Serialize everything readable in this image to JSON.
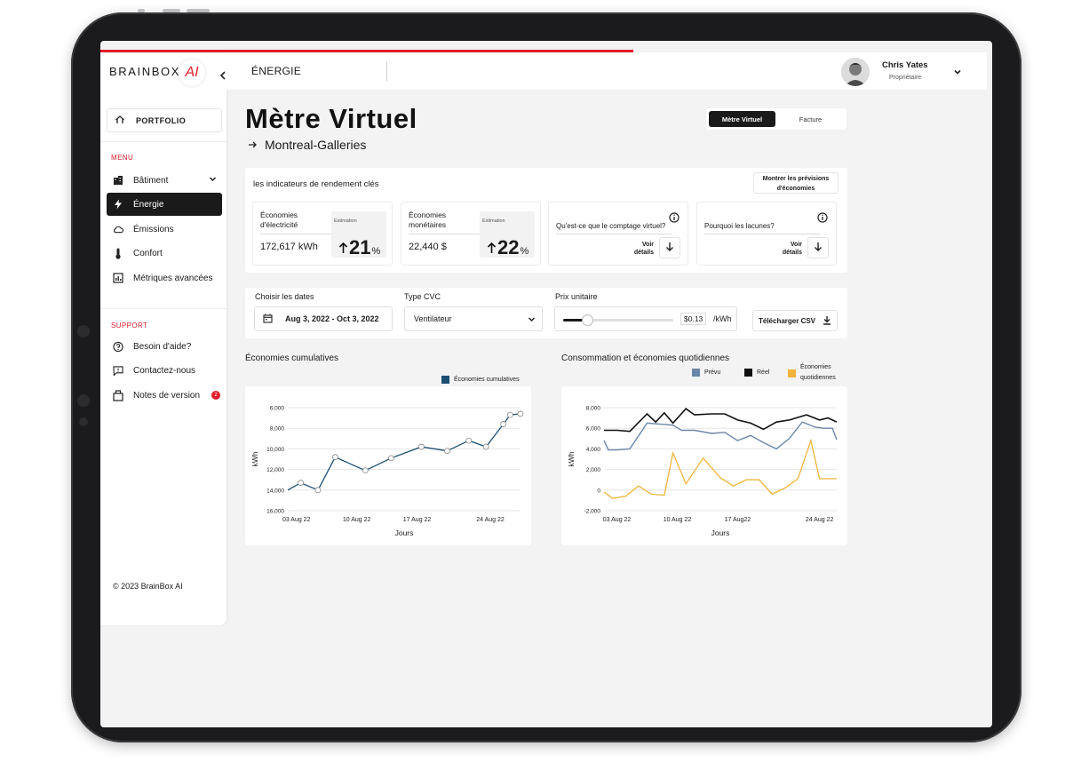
{
  "colors": {
    "brand_red": "#e21d2b",
    "dark": "#1a1a1a",
    "chart_blue": "#1b4f72",
    "prevu": "#6b87a8",
    "reel": "#111111",
    "economies": "#f0b43a"
  },
  "sidebar": {
    "logo_text": "BRAINBOX",
    "logo_ai": "AI",
    "collapse_icon": "chevron-left-icon",
    "portfolio_label": "PORTFOLIO",
    "menu_label": "MENU",
    "menu_items": [
      {
        "label": "Bâtiment",
        "icon": "building-icon",
        "active": false
      },
      {
        "label": "Énergie",
        "icon": "lightning-icon",
        "active": true
      },
      {
        "label": "Émissions",
        "icon": "cloud-icon",
        "active": false
      },
      {
        "label": "Confort",
        "icon": "thermometer-icon",
        "active": false
      },
      {
        "label": "Métriques avancées",
        "icon": "chart-box-icon",
        "active": false
      }
    ],
    "support_label": "SUPPORT",
    "support_items": [
      {
        "label": "Besoin d'aide?",
        "icon": "help-icon"
      },
      {
        "label": "Contactez-nous",
        "icon": "message-icon"
      },
      {
        "label": "Notes de version",
        "icon": "release-notes-icon",
        "badge": "2"
      }
    ],
    "copyright": "© 2023 BrainBox AI"
  },
  "topbar": {
    "title": "ÉNERGIE",
    "user_name": "Chris Yates",
    "user_role": "Propriétaire"
  },
  "header": {
    "title": "Mètre Virtuel",
    "subtitle": "Montreal-Galleries",
    "toggle": [
      "Mètre Virtuel",
      "Facture"
    ]
  },
  "kpis": {
    "title": "les indicateurs de rendement clés",
    "show_button": "Montrer les prévisions d'économies",
    "cards": [
      {
        "label": "Économies d'électricité",
        "value": "172,617 kWh",
        "est_label": "Estimation",
        "est_value": "21",
        "est_unit": "%"
      },
      {
        "label": "Économies monétaires",
        "value": "22,440 $",
        "est_label": "Estimation",
        "est_value": "22",
        "est_unit": "%"
      }
    ],
    "questions": [
      {
        "label": "Qu'est-ce que le comptage virtuel?",
        "link": "Voir détails"
      },
      {
        "label": "Pourquoi les lacunes?",
        "link": "Voir détails"
      }
    ]
  },
  "filters": {
    "dates_label": "Choisir les dates",
    "dates_value": "Aug 3, 2022 - Oct 3, 2022",
    "cvc_label": "Type CVC",
    "cvc_value": "Ventilateur",
    "price_label": "Prix unitaire",
    "price_value": "$0.13",
    "price_unit": "/kWh",
    "price_slider_fraction": 0.22,
    "csv_button": "Télécharger CSV"
  },
  "chart_data": [
    {
      "type": "line",
      "title": "Économies cumulatives",
      "xlabel": "Jours",
      "ylabel": "kWh",
      "ytick_labels": [
        "6,000",
        "8,000",
        "10,000",
        "12,000",
        "14,000",
        "16,000"
      ],
      "xtick_labels": [
        "03 Aug 22",
        "10 Aug 22",
        "17 Aug 22",
        "24 Aug 22"
      ],
      "x_domain": [
        0,
        27
      ],
      "series": [
        {
          "name": "Économies cumulatives",
          "x": [
            0,
            1.5,
            3.5,
            5.5,
            9,
            12,
            15.5,
            18.5,
            21,
            23,
            25,
            25.8,
            27
          ],
          "values": [
            14000,
            13300,
            14000,
            10800,
            12100,
            10900,
            9800,
            10200,
            9200,
            9800,
            7600,
            6700,
            6600
          ]
        }
      ]
    },
    {
      "type": "line",
      "title": "Consommation et économies quotidiennes",
      "xlabel": "Jours",
      "ylabel": "kWh",
      "ytick_labels": [
        "8,000",
        "6,000",
        "4,000",
        "2,000",
        "0",
        "-2,000"
      ],
      "xtick_labels": [
        "03 Aug 22",
        "10 Aug 22",
        "17 Aug22",
        "24 Aug 22"
      ],
      "x_domain": [
        0,
        27
      ],
      "series": [
        {
          "name": "Prévu",
          "x": [
            0,
            0.5,
            1.5,
            3,
            5,
            6.5,
            8,
            9,
            10.5,
            12.5,
            14,
            15.5,
            17,
            18.5,
            20,
            21.5,
            23,
            24.5,
            25.5,
            26.5,
            27
          ],
          "values": [
            4800,
            3900,
            3900,
            4000,
            6500,
            6400,
            6300,
            5800,
            5800,
            5500,
            5600,
            4800,
            5300,
            4600,
            4000,
            5000,
            6600,
            6100,
            6000,
            6000,
            4900
          ]
        },
        {
          "name": "Réel",
          "x": [
            0,
            1.5,
            3,
            5,
            6,
            7,
            8,
            9.5,
            10.5,
            12.5,
            14,
            15.5,
            17,
            18.5,
            20,
            21.5,
            23.5,
            25,
            26,
            27
          ],
          "values": [
            5800,
            5800,
            5700,
            7400,
            6600,
            7500,
            6500,
            7900,
            7300,
            7400,
            7400,
            6800,
            6500,
            5900,
            6600,
            6800,
            7300,
            6800,
            7000,
            6600
          ]
        },
        {
          "name": "Économies quotidiennes",
          "x": [
            0,
            1,
            2.5,
            4,
            5.5,
            7,
            8,
            9.5,
            11.5,
            13.5,
            15,
            16.5,
            18,
            19.5,
            21,
            22.5,
            24,
            25,
            26,
            27
          ],
          "values": [
            -200,
            -800,
            -600,
            400,
            -400,
            -500,
            3600,
            600,
            3100,
            1200,
            400,
            1000,
            1000,
            -400,
            200,
            1100,
            4800,
            1100,
            1100,
            1100
          ]
        }
      ]
    }
  ]
}
